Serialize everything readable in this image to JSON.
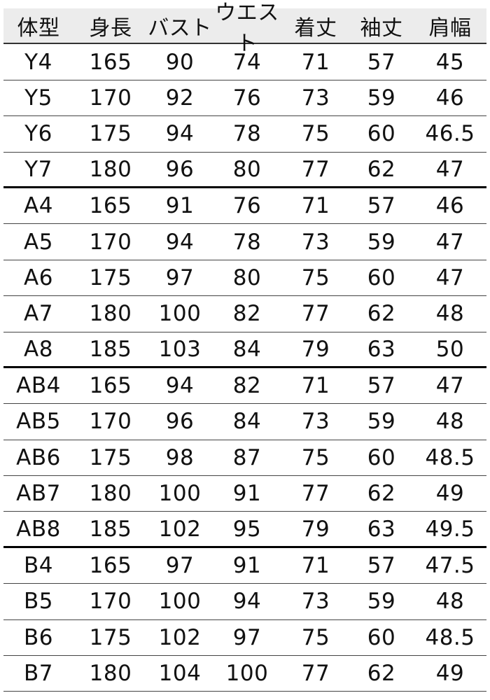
{
  "table": {
    "headers": [
      "体型",
      "身長",
      "バスト",
      "ウエスト",
      "着丈",
      "袖丈",
      "肩幅"
    ],
    "groups": [
      [
        [
          "Y4",
          "165",
          "90",
          "74",
          "71",
          "57",
          "45"
        ],
        [
          "Y5",
          "170",
          "92",
          "76",
          "73",
          "59",
          "46"
        ],
        [
          "Y6",
          "175",
          "94",
          "78",
          "75",
          "60",
          "46.5"
        ],
        [
          "Y7",
          "180",
          "96",
          "80",
          "77",
          "62",
          "47"
        ]
      ],
      [
        [
          "A4",
          "165",
          "91",
          "76",
          "71",
          "57",
          "46"
        ],
        [
          "A5",
          "170",
          "94",
          "78",
          "73",
          "59",
          "47"
        ],
        [
          "A6",
          "175",
          "97",
          "80",
          "75",
          "60",
          "47"
        ],
        [
          "A7",
          "180",
          "100",
          "82",
          "77",
          "62",
          "48"
        ],
        [
          "A8",
          "185",
          "103",
          "84",
          "79",
          "63",
          "50"
        ]
      ],
      [
        [
          "AB4",
          "165",
          "94",
          "82",
          "71",
          "57",
          "47"
        ],
        [
          "AB5",
          "170",
          "96",
          "84",
          "73",
          "59",
          "48"
        ],
        [
          "AB6",
          "175",
          "98",
          "87",
          "75",
          "60",
          "48.5"
        ],
        [
          "AB7",
          "180",
          "100",
          "91",
          "77",
          "62",
          "49"
        ],
        [
          "AB8",
          "185",
          "102",
          "95",
          "79",
          "63",
          "49.5"
        ]
      ],
      [
        [
          "B4",
          "165",
          "97",
          "91",
          "71",
          "57",
          "47.5"
        ],
        [
          "B5",
          "170",
          "100",
          "94",
          "73",
          "59",
          "48"
        ],
        [
          "B6",
          "175",
          "102",
          "97",
          "75",
          "60",
          "48.5"
        ],
        [
          "B7",
          "180",
          "104",
          "100",
          "77",
          "62",
          "49"
        ]
      ]
    ]
  }
}
